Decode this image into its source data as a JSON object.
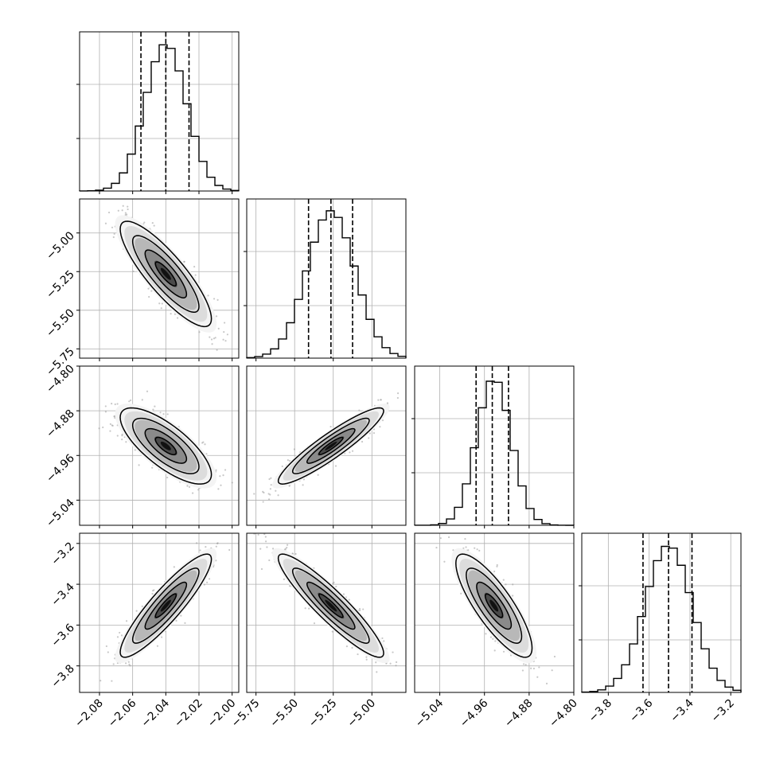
{
  "chart_data": {
    "type": "corner",
    "n_params": 4,
    "grid": true,
    "hist_fill": "#ffffff",
    "line_color": "#000000",
    "point_color": "#9a9a9a",
    "quantiles": [
      0.16,
      0.5,
      0.84
    ],
    "params": [
      {
        "mean": -2.04,
        "sd": 0.0125,
        "range": [
          -2.092,
          -1.996
        ],
        "ticks": [
          -2.08,
          -2.06,
          -2.04,
          -2.02,
          -2.0
        ],
        "tick_labels": [
          "−2.08",
          "−2.06",
          "−2.04",
          "−2.02",
          "−2.00"
        ],
        "quantile_values": [
          -2.055,
          -2.04,
          -2.026
        ]
      },
      {
        "mean": -5.265,
        "sd": 0.155,
        "range": [
          -5.81,
          -4.78
        ],
        "ticks": [
          -5.75,
          -5.5,
          -5.25,
          -5.0
        ],
        "tick_labels": [
          "−5.75",
          "−5.50",
          "−5.25",
          "−5.00"
        ],
        "quantile_values": [
          -5.41,
          -5.265,
          -5.125
        ]
      },
      {
        "mean": -4.943,
        "sd": 0.031,
        "range": [
          -5.085,
          -4.8
        ],
        "ticks": [
          -5.04,
          -4.96,
          -4.88,
          -4.8
        ],
        "tick_labels": [
          "−5.04",
          "−4.96",
          "−4.88",
          "−4.80"
        ],
        "quantile_values": [
          -4.975,
          -4.946,
          -4.917
        ]
      },
      {
        "mean": -3.505,
        "sd": 0.115,
        "range": [
          -3.93,
          -3.15
        ],
        "ticks": [
          -3.8,
          -3.6,
          -3.4,
          -3.2
        ],
        "tick_labels": [
          "−3.8",
          "−3.6",
          "−3.4",
          "−3.2"
        ],
        "quantile_values": [
          -3.63,
          -3.505,
          -3.39
        ]
      }
    ],
    "correlations": {
      "1-0": -0.85,
      "2-0": -0.75,
      "2-1": 0.92,
      "3-0": 0.9,
      "3-1": -0.92,
      "3-2": -0.82
    }
  }
}
